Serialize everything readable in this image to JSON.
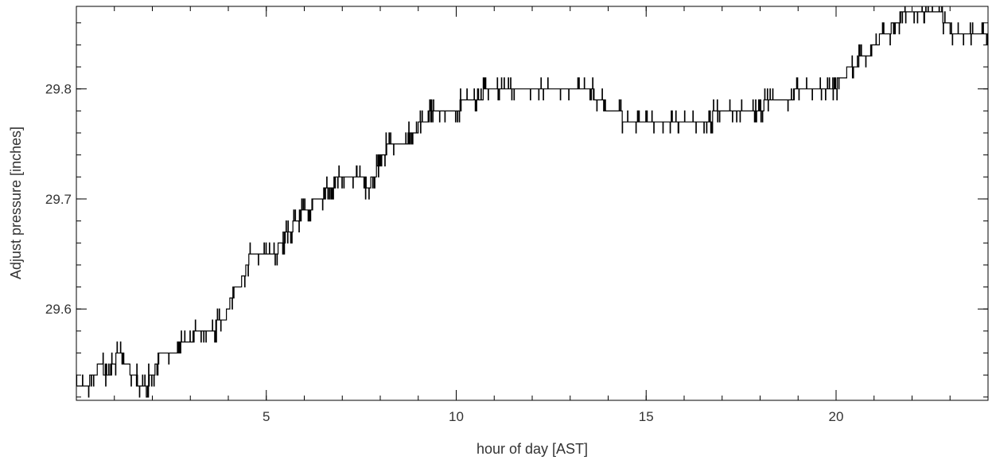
{
  "chart_data": {
    "type": "line",
    "title": "",
    "xlabel": "hour of day [AST]",
    "ylabel": "Adjust pressure [inches]",
    "xlim": [
      0,
      24
    ],
    "ylim": [
      29.517,
      29.875
    ],
    "x_ticks": [
      5,
      10,
      15,
      20
    ],
    "x_tick_labels": [
      "5",
      "10",
      "15",
      "20"
    ],
    "x_minor_step": 1,
    "y_ticks": [
      29.6,
      29.7,
      29.8
    ],
    "y_tick_labels": [
      "29.6",
      "29.7",
      "29.8"
    ],
    "y_minor_step": 0.02,
    "grid": false,
    "legend": "none",
    "line_color": "#000000",
    "step": 0.01,
    "series": [
      {
        "x": [
          0.0,
          0.3,
          0.4,
          0.5,
          0.6,
          0.8,
          1.0,
          1.1,
          1.3,
          1.5,
          1.7,
          1.8,
          2.0,
          2.1,
          2.2,
          2.3,
          2.6,
          2.8,
          3.0,
          3.2,
          3.4,
          3.6,
          3.8,
          3.9,
          4.0,
          4.1,
          4.2,
          4.3,
          4.4,
          4.5,
          4.6,
          4.7,
          4.8,
          5.2,
          5.4,
          5.6,
          5.8,
          6.0,
          6.4,
          6.7,
          6.9,
          7.5,
          7.7,
          7.8,
          8.0,
          8.2,
          8.6,
          8.9,
          9.1,
          9.5,
          10.0,
          10.2,
          10.4,
          11.0,
          11.4,
          11.6,
          11.8,
          12.2,
          12.6,
          13.1,
          13.5,
          14.0,
          14.2,
          14.5,
          15.0,
          15.8,
          16.5,
          17.0,
          17.8,
          18.4,
          18.8,
          19.0,
          19.5,
          19.9,
          20.4,
          20.8,
          21.0,
          21.3,
          21.6,
          21.8,
          22.2,
          22.5,
          22.7,
          22.9,
          23.1,
          23.4,
          23.7,
          24.0
        ],
        "y": [
          29.53,
          29.53,
          29.54,
          29.54,
          29.55,
          29.54,
          29.55,
          29.56,
          29.55,
          29.54,
          29.53,
          29.53,
          29.54,
          29.55,
          29.56,
          29.56,
          29.56,
          29.57,
          29.57,
          29.58,
          29.58,
          29.58,
          29.59,
          29.59,
          29.6,
          29.61,
          29.62,
          29.62,
          29.63,
          29.64,
          29.65,
          29.65,
          29.65,
          29.65,
          29.66,
          29.67,
          29.68,
          29.69,
          29.7,
          29.71,
          29.72,
          29.72,
          29.71,
          29.72,
          29.73,
          29.75,
          29.75,
          29.76,
          29.77,
          29.78,
          29.78,
          29.79,
          29.79,
          29.8,
          29.8,
          29.8,
          29.8,
          29.8,
          29.8,
          29.8,
          29.8,
          29.78,
          29.78,
          29.77,
          29.77,
          29.77,
          29.77,
          29.78,
          29.78,
          29.79,
          29.79,
          29.8,
          29.8,
          29.8,
          29.82,
          29.83,
          29.84,
          29.85,
          29.86,
          29.87,
          29.87,
          29.87,
          29.87,
          29.86,
          29.85,
          29.85,
          29.85,
          29.85
        ]
      }
    ]
  }
}
